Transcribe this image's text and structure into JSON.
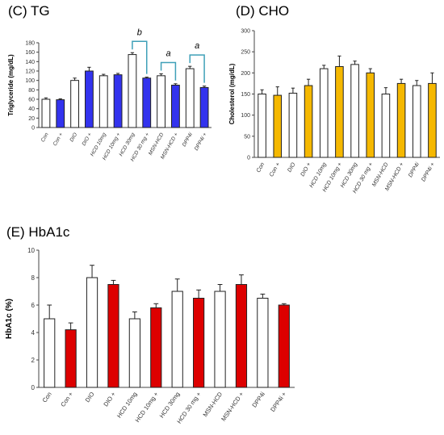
{
  "chart_data": [
    {
      "panel_label": "(C) TG",
      "type": "bar",
      "ylabel": "Triglyceride (mg/dL)",
      "ylim": [
        0,
        180
      ],
      "yticks": [
        0,
        20,
        40,
        60,
        80,
        100,
        120,
        140,
        160,
        180
      ],
      "categories": [
        "Con",
        "Con +",
        "DIO",
        "DIO +",
        "HCD 10mg",
        "HCD 10mg +",
        "HCD 30mg",
        "HCD 30 mg +",
        "MSN-HCD",
        "MSN-HCD +",
        "DPP4i",
        "DPP4i +"
      ],
      "values": [
        60,
        59,
        100,
        120,
        110,
        112,
        155,
        105,
        110,
        90,
        125,
        85
      ],
      "errors": [
        3,
        2,
        5,
        8,
        3,
        3,
        4,
        2,
        4,
        3,
        5,
        3
      ],
      "highlight_color": "#3333ee",
      "significance": [
        {
          "from": 6,
          "to": 7,
          "label": "b"
        },
        {
          "from": 8,
          "to": 9,
          "label": "a"
        },
        {
          "from": 10,
          "to": 11,
          "label": "a"
        }
      ]
    },
    {
      "panel_label": "(D) CHO",
      "type": "bar",
      "ylabel": "Cholesterol (mg/dL)",
      "ylim": [
        0,
        300
      ],
      "yticks": [
        0,
        50,
        100,
        150,
        200,
        250,
        300
      ],
      "categories": [
        "Con",
        "Con +",
        "DIO",
        "DIO +",
        "HCD 10mg",
        "HCD 10mg +",
        "HCD 30mg",
        "HCD 30 mg +",
        "MSN-HCD",
        "MSN-HCD +",
        "DPP4i",
        "DPP4i +"
      ],
      "values": [
        150,
        147,
        152,
        170,
        210,
        215,
        220,
        200,
        150,
        175,
        170,
        175
      ],
      "errors": [
        10,
        20,
        12,
        15,
        8,
        25,
        8,
        10,
        15,
        10,
        12,
        25
      ],
      "highlight_color": "#f5b800",
      "significance": []
    },
    {
      "panel_label": "(E) HbA1c",
      "type": "bar",
      "ylabel": "HbA1c (%)",
      "ylim": [
        0,
        10
      ],
      "yticks": [
        0,
        2,
        4,
        6,
        8,
        10
      ],
      "categories": [
        "Con",
        "Con +",
        "DIO",
        "DIO +",
        "HCD 10mg",
        "HCD 10mg +",
        "HCD 30mg",
        "HCD 30 mg +",
        "MSN-HCD",
        "MSN-HCD +",
        "DPP4i",
        "DPP4i +"
      ],
      "values": [
        5.0,
        4.2,
        8.0,
        7.5,
        5.0,
        5.8,
        7.0,
        6.5,
        7.0,
        7.5,
        6.5,
        6.0
      ],
      "errors": [
        1.0,
        0.5,
        0.9,
        0.3,
        0.5,
        0.3,
        0.9,
        0.6,
        0.5,
        0.7,
        0.3,
        0.1
      ],
      "highlight_color": "#dd0000",
      "significance": []
    }
  ]
}
